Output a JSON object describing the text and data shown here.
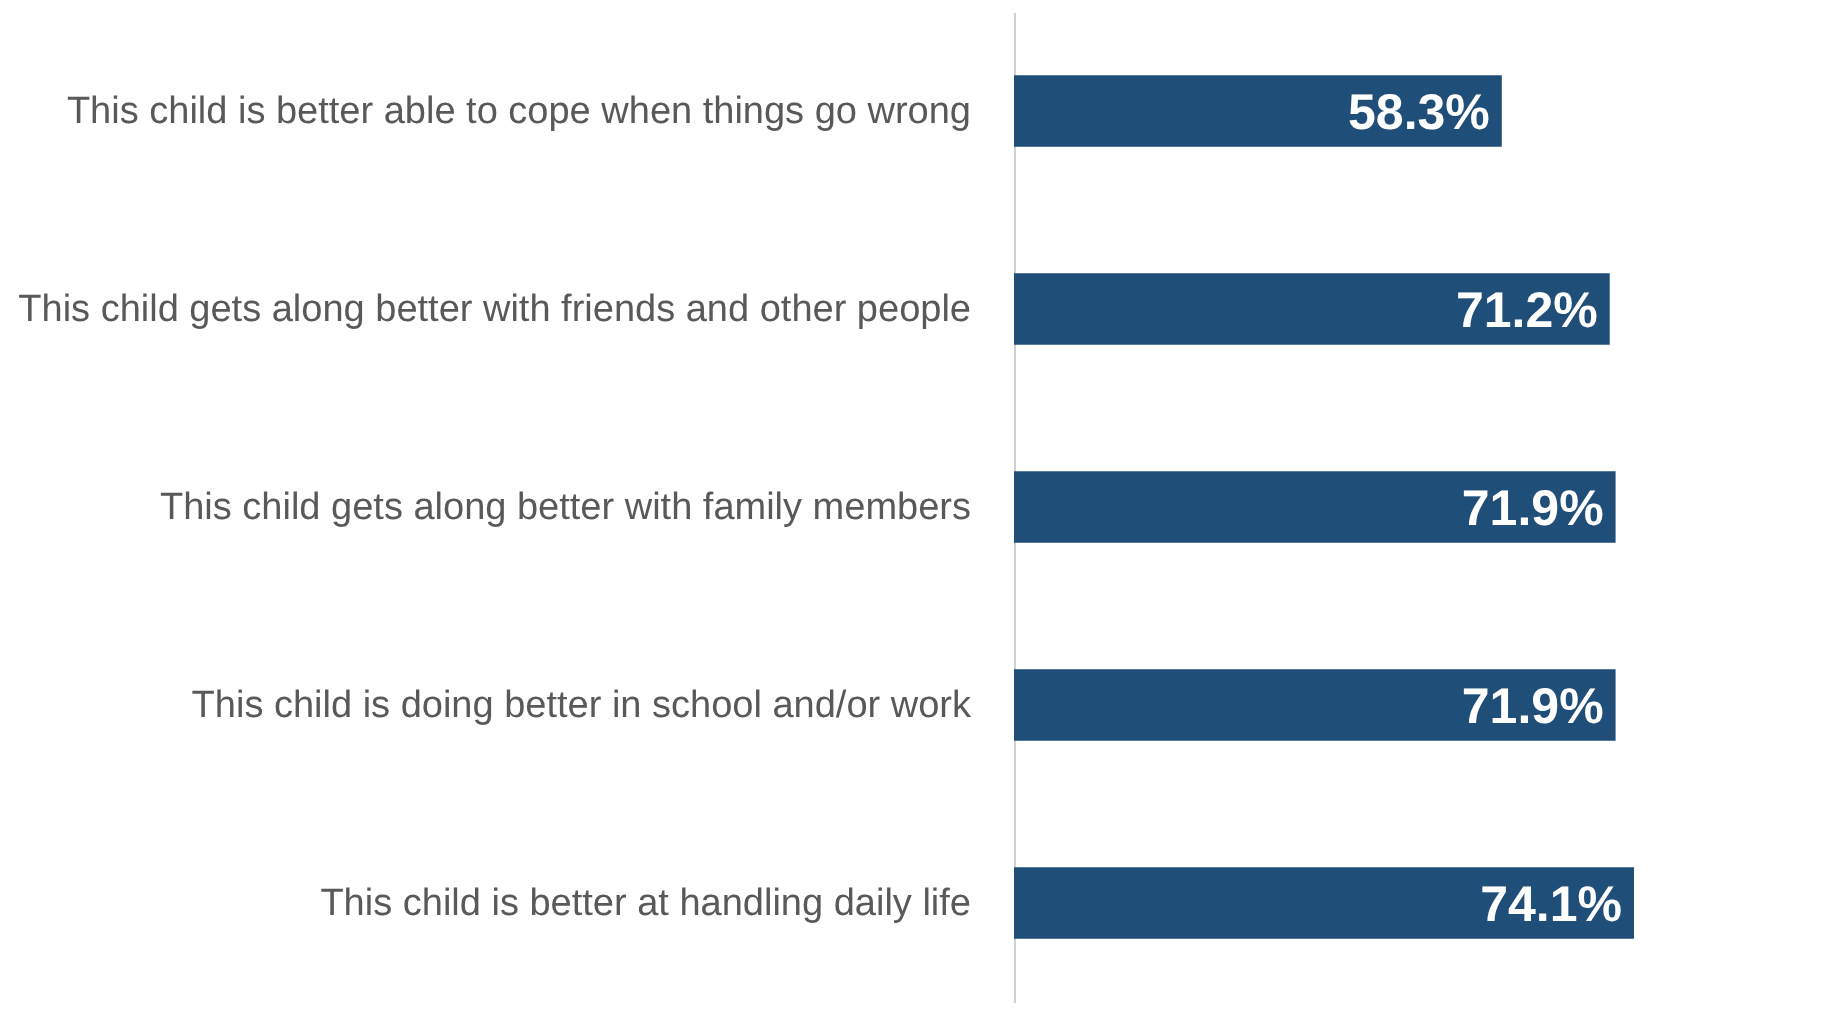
{
  "chart_data": {
    "type": "bar",
    "orientation": "horizontal",
    "categories": [
      "This child is better able to cope when things go wrong",
      "This child gets along better with friends and other people",
      "This child gets along better with family members",
      "This child is doing better in school and/or work",
      "This child is better at handling daily life"
    ],
    "values": [
      58.3,
      71.2,
      71.9,
      71.9,
      74.1
    ],
    "value_labels": [
      "58.3%",
      "71.2%",
      "71.9%",
      "71.9%",
      "74.1%"
    ],
    "color": "#1f4e79"
  }
}
